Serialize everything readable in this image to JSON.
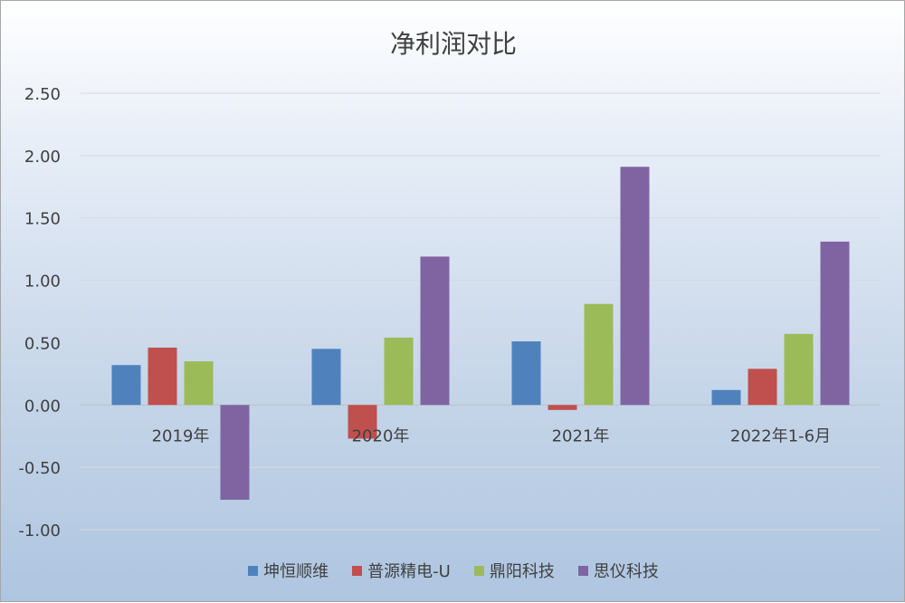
{
  "chart_data": {
    "type": "bar",
    "title": "净利润对比",
    "categories": [
      "2019年",
      "2020年",
      "2021年",
      "2022年1-6月"
    ],
    "series": [
      {
        "name": "坤恒顺维",
        "color": "#4f81bd",
        "values": [
          0.32,
          0.45,
          0.51,
          0.12
        ]
      },
      {
        "name": "普源精电-U",
        "color": "#c0504d",
        "values": [
          0.46,
          -0.27,
          -0.04,
          0.29
        ]
      },
      {
        "name": "鼎阳科技",
        "color": "#9bbb59",
        "values": [
          0.35,
          0.54,
          0.81,
          0.57
        ]
      },
      {
        "name": "思仪科技",
        "color": "#8064a2",
        "values": [
          -0.76,
          1.19,
          1.91,
          1.31
        ]
      }
    ],
    "ylim": [
      -1.0,
      2.5
    ],
    "yticks": [
      "2.50",
      "2.00",
      "1.50",
      "1.00",
      "0.50",
      "0.00",
      "-0.50",
      "-1.00"
    ],
    "grid": true,
    "legend_position": "bottom"
  }
}
